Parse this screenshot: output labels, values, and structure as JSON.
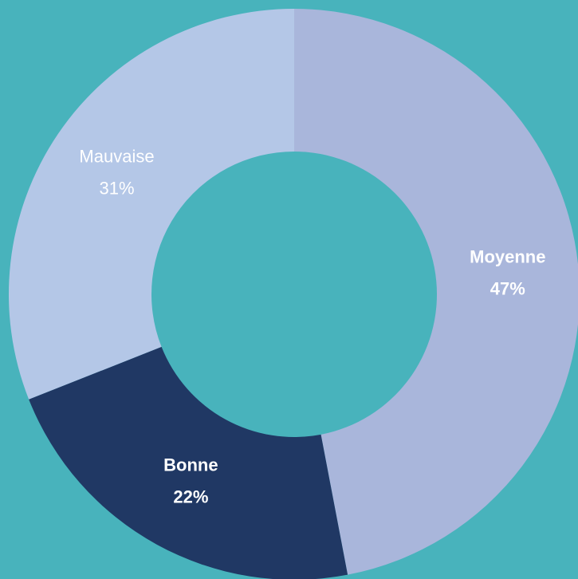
{
  "chart_data": {
    "type": "donut",
    "categories": [
      "Moyenne",
      "Bonne",
      "Mauvaise"
    ],
    "values": [
      47,
      22,
      31
    ],
    "value_labels": [
      "47%",
      "22%",
      "31%"
    ],
    "colors": [
      "#a9b6db",
      "#203864",
      "#b4c7e7"
    ]
  }
}
